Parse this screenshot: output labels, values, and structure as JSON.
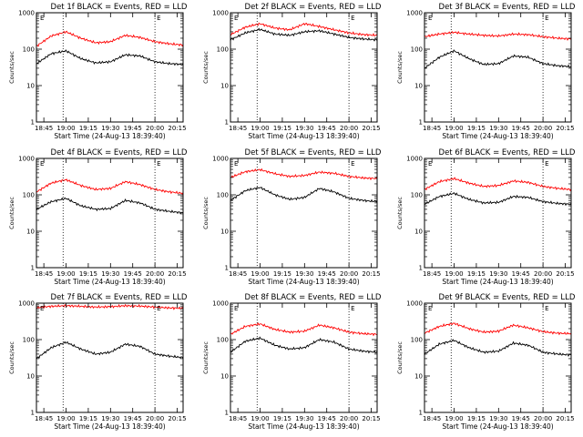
{
  "common": {
    "xlabel": "Start Time (24-Aug-13 18:39:40)",
    "ylabel": "Counts/sec",
    "x_ticks": [
      "18:45",
      "19:00",
      "19:15",
      "19:30",
      "19:45",
      "20:00",
      "20:15"
    ],
    "y_ticks": [
      "1",
      "10",
      "100",
      "1000"
    ],
    "marker_labels": [
      "E",
      "E"
    ],
    "colors": {
      "events": "#000000",
      "lld": "#ff0000",
      "axes": "#000000"
    },
    "y_scale": "log",
    "ylim": [
      1,
      1000
    ]
  },
  "chart_data": [
    {
      "type": "line",
      "title": "Det 1f BLACK = Events, RED = LLD",
      "x": [
        "18:40",
        "18:50",
        "19:00",
        "19:10",
        "19:20",
        "19:30",
        "19:40",
        "19:50",
        "20:00",
        "20:10",
        "20:19"
      ],
      "series": [
        {
          "name": "Events",
          "values": [
            40,
            75,
            90,
            55,
            42,
            45,
            70,
            65,
            45,
            40,
            38
          ]
        },
        {
          "name": "LLD",
          "values": [
            120,
            230,
            300,
            200,
            150,
            160,
            240,
            210,
            160,
            140,
            130
          ]
        }
      ],
      "vlines": [
        "18:58",
        "20:00",
        "20:19"
      ]
    },
    {
      "type": "line",
      "title": "Det 2f BLACK = Events, RED = LLD",
      "x": [
        "18:40",
        "18:50",
        "19:00",
        "19:10",
        "19:20",
        "19:30",
        "19:40",
        "19:50",
        "20:00",
        "20:10",
        "20:19"
      ],
      "series": [
        {
          "name": "Events",
          "values": [
            180,
            280,
            350,
            260,
            240,
            300,
            320,
            260,
            210,
            190,
            180
          ]
        },
        {
          "name": "LLD",
          "values": [
            250,
            400,
            500,
            380,
            340,
            500,
            420,
            340,
            280,
            250,
            240
          ]
        }
      ],
      "vlines": [
        "18:58",
        "20:00",
        "20:19"
      ]
    },
    {
      "type": "line",
      "title": "Det 3f BLACK = Events, RED = LLD",
      "x": [
        "18:40",
        "18:50",
        "19:00",
        "19:10",
        "19:20",
        "19:30",
        "19:40",
        "19:50",
        "20:00",
        "20:10",
        "20:19"
      ],
      "series": [
        {
          "name": "Events",
          "values": [
            30,
            60,
            90,
            55,
            38,
            40,
            65,
            60,
            40,
            35,
            33
          ]
        },
        {
          "name": "LLD",
          "values": [
            220,
            260,
            290,
            260,
            240,
            230,
            260,
            250,
            220,
            200,
            190
          ]
        }
      ],
      "vlines": [
        "18:58",
        "20:00",
        "20:19"
      ]
    },
    {
      "type": "line",
      "title": "Det 4f BLACK = Events, RED = LLD",
      "x": [
        "18:40",
        "18:50",
        "19:00",
        "19:10",
        "19:20",
        "19:30",
        "19:40",
        "19:50",
        "20:00",
        "20:10",
        "20:19"
      ],
      "series": [
        {
          "name": "Events",
          "values": [
            40,
            65,
            80,
            50,
            40,
            42,
            70,
            60,
            40,
            35,
            32
          ]
        },
        {
          "name": "LLD",
          "values": [
            120,
            210,
            260,
            180,
            140,
            150,
            230,
            190,
            140,
            120,
            110
          ]
        }
      ],
      "vlines": [
        "18:58",
        "20:00",
        "20:19"
      ]
    },
    {
      "type": "line",
      "title": "Det 5f BLACK = Events, RED = LLD",
      "x": [
        "18:40",
        "18:50",
        "19:00",
        "19:10",
        "19:20",
        "19:30",
        "19:40",
        "19:50",
        "20:00",
        "20:10",
        "20:19"
      ],
      "series": [
        {
          "name": "Events",
          "values": [
            70,
            130,
            160,
            100,
            75,
            85,
            150,
            120,
            80,
            70,
            65
          ]
        },
        {
          "name": "LLD",
          "values": [
            300,
            430,
            490,
            380,
            320,
            340,
            420,
            390,
            320,
            290,
            280
          ]
        }
      ],
      "vlines": [
        "18:58",
        "20:00",
        "20:19"
      ]
    },
    {
      "type": "line",
      "title": "Det 6f BLACK = Events, RED = LLD",
      "x": [
        "18:40",
        "18:50",
        "19:00",
        "19:10",
        "19:20",
        "19:30",
        "19:40",
        "19:50",
        "20:00",
        "20:10",
        "20:19"
      ],
      "series": [
        {
          "name": "Events",
          "values": [
            55,
            90,
            110,
            75,
            60,
            62,
            90,
            85,
            65,
            58,
            55
          ]
        },
        {
          "name": "LLD",
          "values": [
            140,
            230,
            280,
            210,
            170,
            180,
            240,
            220,
            170,
            150,
            140
          ]
        }
      ],
      "vlines": [
        "18:58",
        "20:00",
        "20:19"
      ]
    },
    {
      "type": "line",
      "title": "Det 7f BLACK = Events, RED = LLD",
      "x": [
        "18:40",
        "18:50",
        "19:00",
        "19:10",
        "19:20",
        "19:30",
        "19:40",
        "19:50",
        "20:00",
        "20:10",
        "20:19"
      ],
      "series": [
        {
          "name": "Events",
          "values": [
            30,
            60,
            85,
            55,
            40,
            45,
            75,
            65,
            40,
            35,
            32
          ]
        },
        {
          "name": "LLD",
          "values": [
            750,
            820,
            850,
            820,
            780,
            800,
            850,
            830,
            780,
            740,
            720
          ]
        }
      ],
      "vlines": [
        "18:58",
        "20:00",
        "20:19"
      ]
    },
    {
      "type": "line",
      "title": "Det 8f BLACK = Events, RED = LLD",
      "x": [
        "18:40",
        "18:50",
        "19:00",
        "19:10",
        "19:20",
        "19:30",
        "19:40",
        "19:50",
        "20:00",
        "20:10",
        "20:19"
      ],
      "series": [
        {
          "name": "Events",
          "values": [
            45,
            90,
            110,
            70,
            55,
            60,
            100,
            85,
            55,
            48,
            45
          ]
        },
        {
          "name": "LLD",
          "values": [
            140,
            230,
            270,
            190,
            160,
            170,
            250,
            210,
            160,
            145,
            140
          ]
        }
      ],
      "vlines": [
        "18:58",
        "20:00",
        "20:19"
      ]
    },
    {
      "type": "line",
      "title": "Det 9f BLACK = Events, RED = LLD",
      "x": [
        "18:40",
        "18:50",
        "19:00",
        "19:10",
        "19:20",
        "19:30",
        "19:40",
        "19:50",
        "20:00",
        "20:10",
        "20:19"
      ],
      "series": [
        {
          "name": "Events",
          "values": [
            40,
            75,
            95,
            60,
            45,
            48,
            80,
            70,
            45,
            40,
            38
          ]
        },
        {
          "name": "LLD",
          "values": [
            150,
            230,
            280,
            200,
            160,
            170,
            250,
            210,
            165,
            150,
            145
          ]
        }
      ],
      "vlines": [
        "18:58",
        "20:00",
        "20:19"
      ]
    }
  ]
}
